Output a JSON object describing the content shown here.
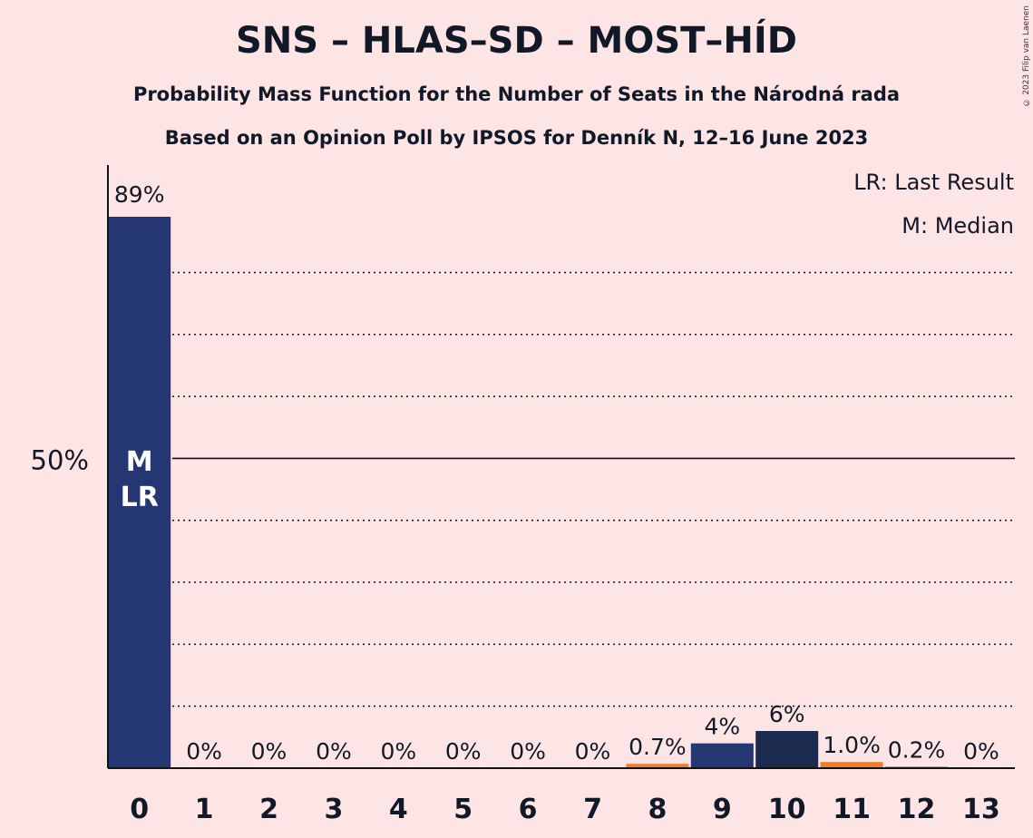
{
  "title": "SNS – HLAS–SD – MOST–HÍD",
  "subtitle1": "Probability Mass Function for the Number of Seats in the Národná rada",
  "subtitle2": "Based on an Opinion Poll by IPSOS for Denník N, 12–16 June 2023",
  "copyright": "© 2023 Filip van Laenen",
  "legend": {
    "lr": "LR: Last Result",
    "m": "M: Median"
  },
  "colors": {
    "background": "#FEE5E5",
    "primary_bar": "#253772",
    "dark_bar": "#1B2A4F",
    "orange_bar": "#F07F2B",
    "text": "#111827"
  },
  "chart_data": {
    "type": "bar",
    "categories": [
      "0",
      "1",
      "2",
      "3",
      "4",
      "5",
      "6",
      "7",
      "8",
      "9",
      "10",
      "11",
      "12",
      "13"
    ],
    "values": [
      89,
      0,
      0,
      0,
      0,
      0,
      0,
      0,
      0.7,
      4,
      6,
      1.0,
      0.2,
      0
    ],
    "labels": [
      "89%",
      "0%",
      "0%",
      "0%",
      "0%",
      "0%",
      "0%",
      "0%",
      "0.7%",
      "4%",
      "6%",
      "1.0%",
      "0.2%",
      "0%"
    ],
    "bar_colors": [
      "primary_bar",
      "primary_bar",
      "primary_bar",
      "primary_bar",
      "primary_bar",
      "primary_bar",
      "primary_bar",
      "primary_bar",
      "orange_bar",
      "primary_bar",
      "dark_bar",
      "orange_bar",
      "primary_bar",
      "primary_bar"
    ],
    "ylim": [
      0,
      89
    ],
    "y_ticks": [
      {
        "value": 50,
        "label": "50%"
      }
    ],
    "gridlines": [
      10,
      20,
      30,
      40,
      60,
      70,
      80
    ],
    "median_seat": "0",
    "last_result_seat": "0",
    "bar_annotations": [
      "M",
      "LR"
    ],
    "legend_position": "top-right"
  }
}
